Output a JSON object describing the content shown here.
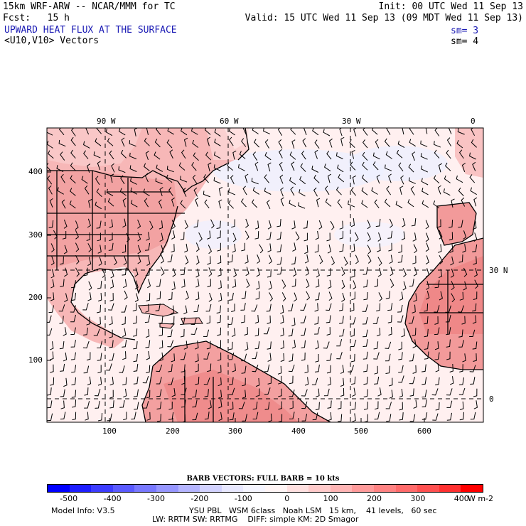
{
  "header": {
    "model": "15km WRF-ARW -- NCAR/MMM for TC",
    "init": "Init: 00 UTC Wed 11 Sep 13",
    "fcst": "Fcst:   15 h",
    "valid": "Valid: 15 UTC Wed 11 Sep 13 (09 MDT Wed 11 Sep 13)",
    "field": "UPWARD HEAT FLUX AT THE SURFACE",
    "sm1": "sm= 3",
    "vectors": "<U10,V10> Vectors",
    "sm2": "sm= 4"
  },
  "map": {
    "top_lon_labels": [
      "90 W",
      "60 W",
      "30 W",
      "0"
    ],
    "right_lat_labels": [
      "30 N",
      "0"
    ],
    "left_y_ticks": [
      "400",
      "300",
      "200",
      "100"
    ],
    "bottom_x_ticks": [
      "100",
      "200",
      "300",
      "400",
      "500",
      "600"
    ]
  },
  "barb_title": "BARB VECTORS:  FULL BARB = 10 kts",
  "colorbar": {
    "labels": [
      "-500",
      "-400",
      "-300",
      "-200",
      "-100",
      "0",
      "100",
      "200",
      "300",
      "400"
    ],
    "units": "W m-2",
    "colors": [
      "#0000ff",
      "#1e1eff",
      "#3c3cff",
      "#5a5aff",
      "#7878ff",
      "#9696ff",
      "#b4b4ff",
      "#d2d2ff",
      "#e8e8ff",
      "#f5f5ff",
      "#fff5f5",
      "#ffe0e0",
      "#ffcaca",
      "#ffb4b4",
      "#ff9a9a",
      "#ff8282",
      "#ff6a6a",
      "#ff5050",
      "#ff3030",
      "#ff0000"
    ]
  },
  "footer": {
    "model_info": "Model Info: V3.5",
    "line1": "YSU PBL   WSM 6class   Noah LSM   15 km,    41 levels,   60 sec",
    "line2": "LW: RRTM SW: RRTMG    DIFF: simple KM: 2D Smagor"
  }
}
